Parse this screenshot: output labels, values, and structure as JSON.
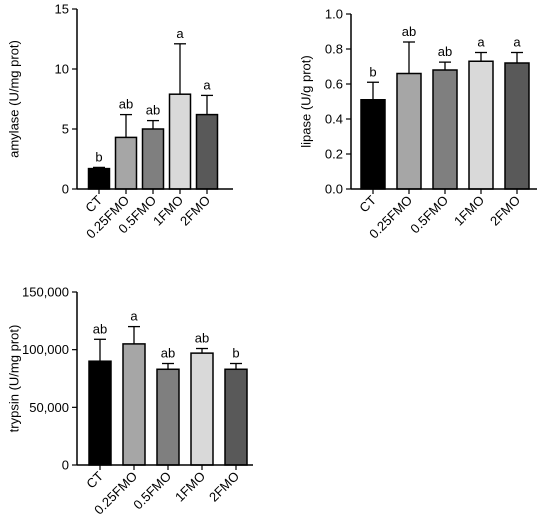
{
  "chart_data": [
    {
      "type": "bar",
      "categories": [
        "CT",
        "0.25FMO",
        "0.5FMO",
        "1FMO",
        "2FMO"
      ],
      "values": [
        1.7,
        4.3,
        5.0,
        7.9,
        6.2
      ],
      "errors": [
        0.1,
        1.9,
        0.7,
        4.2,
        1.6
      ],
      "significance": [
        "b",
        "ab",
        "ab",
        "a",
        "a"
      ],
      "colors": [
        "#000000",
        "#a6a6a6",
        "#7f7f7f",
        "#d9d9d9",
        "#595959"
      ],
      "ylabel": "amylase (U/mg prot)",
      "ylim": [
        0,
        15
      ],
      "yticks": [
        0,
        5,
        10,
        15
      ],
      "ytick_labels": [
        "0",
        "5",
        "10",
        "15"
      ]
    },
    {
      "type": "bar",
      "categories": [
        "CT",
        "0.25FMO",
        "0.5FMO",
        "1FMO",
        "2FMO"
      ],
      "values": [
        0.51,
        0.66,
        0.68,
        0.73,
        0.72
      ],
      "errors": [
        0.1,
        0.18,
        0.045,
        0.05,
        0.06
      ],
      "significance": [
        "b",
        "ab",
        "ab",
        "a",
        "a"
      ],
      "colors": [
        "#000000",
        "#a6a6a6",
        "#7f7f7f",
        "#d9d9d9",
        "#595959"
      ],
      "ylabel": "lipase (U/g prot)",
      "ylim": [
        0,
        1.0
      ],
      "yticks": [
        0,
        0.2,
        0.4,
        0.6,
        0.8,
        1.0
      ],
      "ytick_labels": [
        "0.0",
        "0.2",
        "0.4",
        "0.6",
        "0.8",
        "1.0"
      ]
    },
    {
      "type": "bar",
      "categories": [
        "CT",
        "0.25FMO",
        "0.5FMO",
        "1FMO",
        "2FMO"
      ],
      "values": [
        90000,
        105000,
        83000,
        97000,
        83000
      ],
      "errors": [
        19000,
        15000,
        5000,
        4000,
        5000
      ],
      "significance": [
        "ab",
        "a",
        "ab",
        "ab",
        "b"
      ],
      "colors": [
        "#000000",
        "#a6a6a6",
        "#7f7f7f",
        "#d9d9d9",
        "#595959"
      ],
      "ylabel": "trypsin (U/mg prot)",
      "ylim": [
        0,
        150000
      ],
      "yticks": [
        0,
        50000,
        100000,
        150000
      ],
      "ytick_labels": [
        "0",
        "50,000",
        "100,000",
        "150,000"
      ]
    }
  ]
}
